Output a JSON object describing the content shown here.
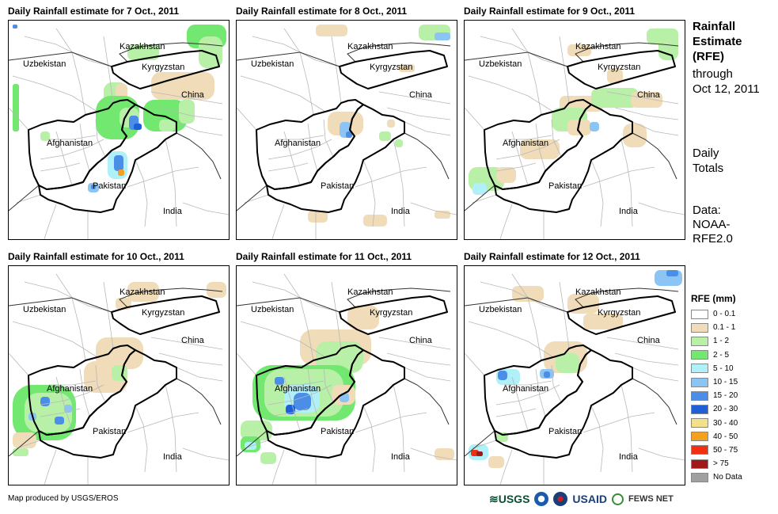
{
  "panels": [
    {
      "title": "Daily Rainfall estimate for 7 Oct., 2011",
      "pattern": "day7"
    },
    {
      "title": "Daily Rainfall estimate for 8 Oct., 2011",
      "pattern": "day8"
    },
    {
      "title": "Daily Rainfall estimate for 9 Oct., 2011",
      "pattern": "day9"
    },
    {
      "title": "Daily Rainfall estimate for 10 Oct., 2011",
      "pattern": "day10"
    },
    {
      "title": "Daily Rainfall estimate for 11 Oct., 2011",
      "pattern": "day11"
    },
    {
      "title": "Daily Rainfall estimate for 12 Oct., 2011",
      "pattern": "day12"
    }
  ],
  "map_labels": {
    "kazakhstan": "Kazakhstan",
    "uzbekistan": "Uzbekistan",
    "kyrgyzstan": "Kyrgyzstan",
    "china": "China",
    "afghanistan": "Afghanistan",
    "pakistan": "Pakistan",
    "india": "India"
  },
  "side": {
    "title_lines": [
      "Rainfall",
      "Estimate",
      "(RFE)"
    ],
    "subtitle_lines": [
      "through",
      "Oct 12, 2011"
    ],
    "daily_lines": [
      "Daily",
      "Totals"
    ],
    "data_lines": [
      "Data:",
      "NOAA-",
      "RFE2.0"
    ]
  },
  "legend": {
    "title": "RFE (mm)",
    "items": [
      {
        "label": "0 - 0.1",
        "color": "#ffffff"
      },
      {
        "label": "0.1 - 1",
        "color": "#f0dcb8"
      },
      {
        "label": "1 - 2",
        "color": "#b8f0a8"
      },
      {
        "label": "2 - 5",
        "color": "#72e870"
      },
      {
        "label": "5 - 10",
        "color": "#b0f0f8"
      },
      {
        "label": "10 - 15",
        "color": "#8cc4f4"
      },
      {
        "label": "15 - 20",
        "color": "#4a8ee8"
      },
      {
        "label": "20 - 30",
        "color": "#1e5ed8"
      },
      {
        "label": "30 - 40",
        "color": "#f4e08a"
      },
      {
        "label": "40 - 50",
        "color": "#f4a020"
      },
      {
        "label": "50 - 75",
        "color": "#f03010"
      },
      {
        "label": "> 75",
        "color": "#a01818"
      },
      {
        "label": "No Data",
        "color": "#a0a0a0"
      }
    ]
  },
  "credit": "Map produced by USGS/EROS",
  "logos": {
    "usgs": "USGS",
    "usaid": "USAID",
    "fews": "FEWS NET"
  }
}
